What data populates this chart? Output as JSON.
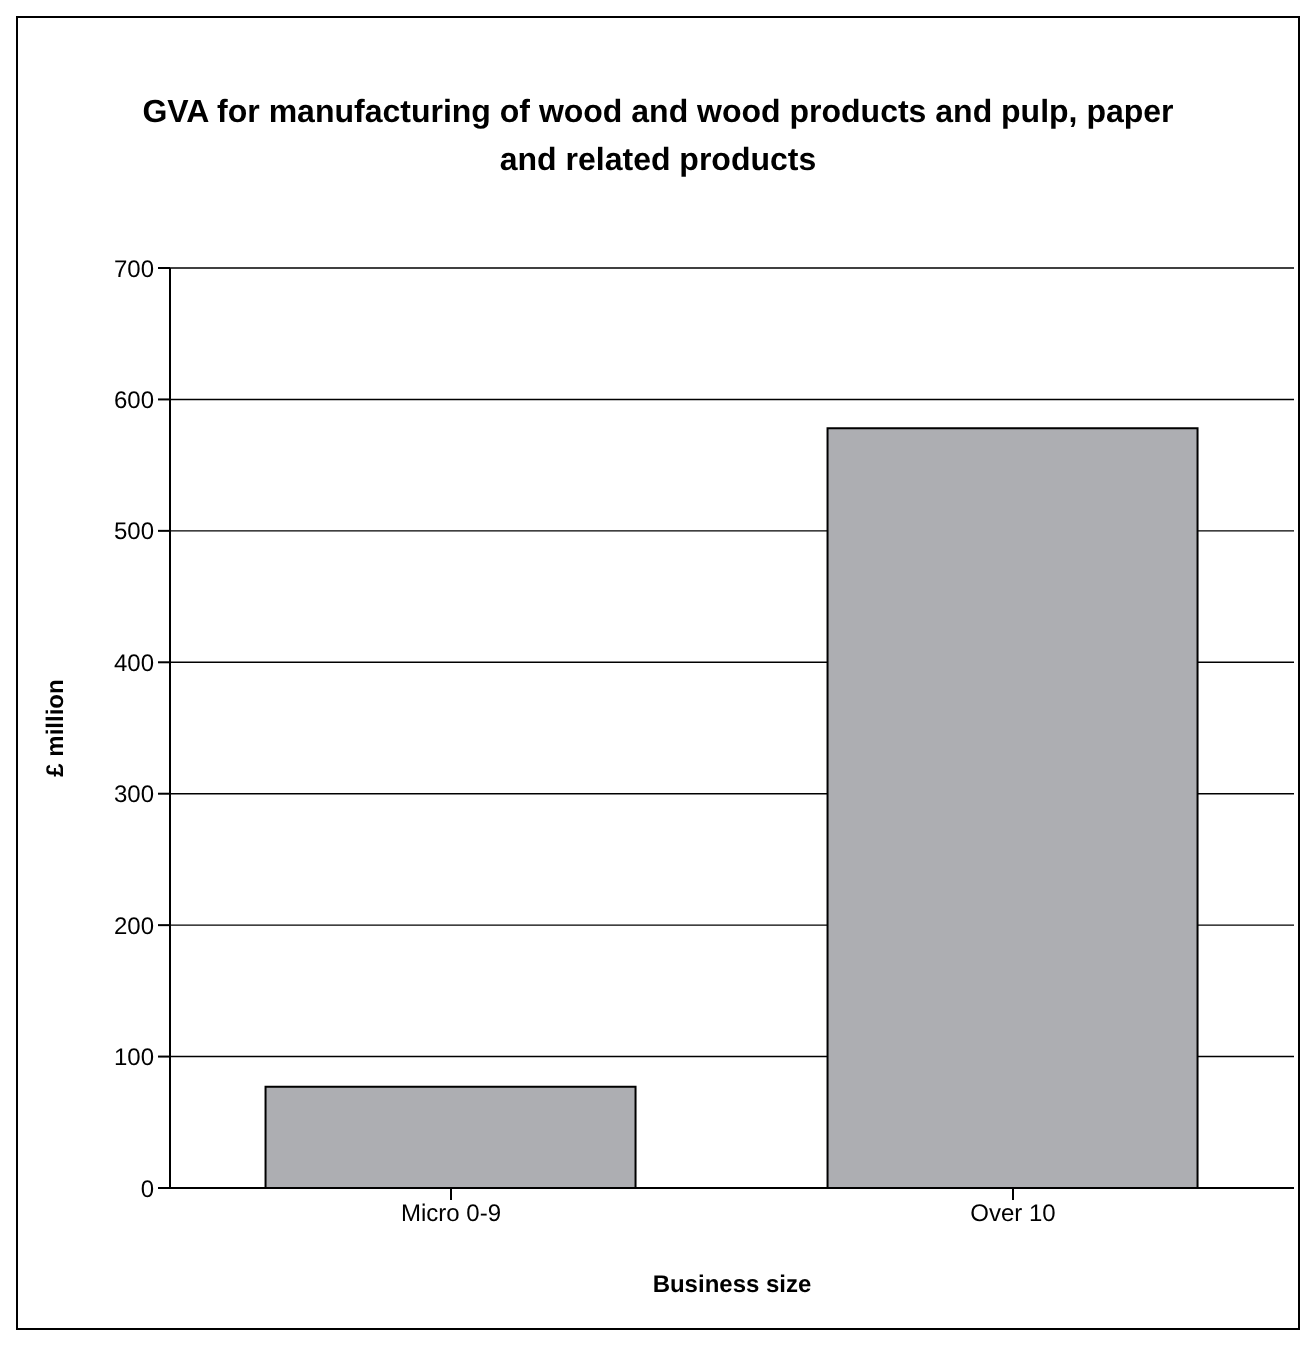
{
  "chart_data": {
    "type": "bar",
    "title": "GVA for manufacturing of wood and wood products and pulp, paper and related products",
    "xlabel": "Business size",
    "ylabel": "£ million",
    "categories": [
      "Micro 0-9",
      "Over 10"
    ],
    "values": [
      77,
      578
    ],
    "color": "#adaeb2",
    "ylim": [
      0,
      700
    ],
    "yticks": [
      0,
      100,
      200,
      300,
      400,
      500,
      600,
      700
    ],
    "grid": "y"
  }
}
